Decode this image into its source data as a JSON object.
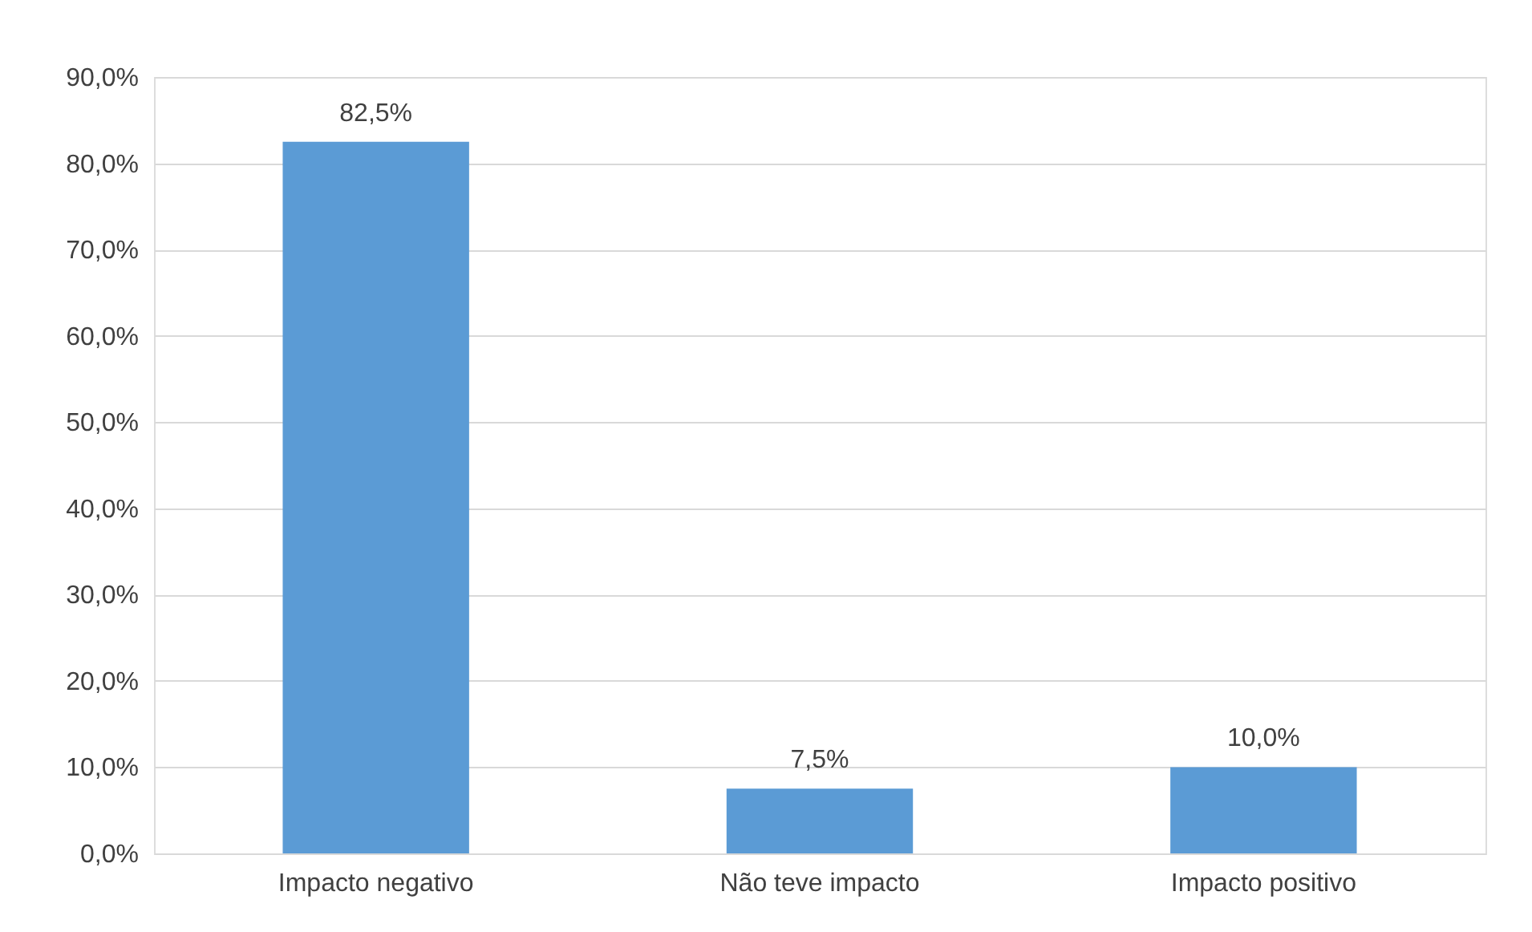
{
  "chart_data": {
    "type": "bar",
    "categories": [
      "Impacto negativo",
      "Não teve impacto",
      "Impacto positivo"
    ],
    "values": [
      82.5,
      7.5,
      10.0
    ],
    "color": "#5b9bd5",
    "value_labels": [
      "82,5%",
      "7,5%",
      "10,0%"
    ],
    "ylim": [
      0,
      90
    ],
    "yticks": [
      {
        "value": 0,
        "label": "0,0%"
      },
      {
        "value": 10,
        "label": "10,0%"
      },
      {
        "value": 20,
        "label": "20,0%"
      },
      {
        "value": 30,
        "label": "30,0%"
      },
      {
        "value": 40,
        "label": "40,0%"
      },
      {
        "value": 50,
        "label": "50,0%"
      },
      {
        "value": 60,
        "label": "60,0%"
      },
      {
        "value": 70,
        "label": "70,0%"
      },
      {
        "value": 80,
        "label": "80,0%"
      },
      {
        "value": 90,
        "label": "90,0%"
      }
    ],
    "grid": "y"
  }
}
